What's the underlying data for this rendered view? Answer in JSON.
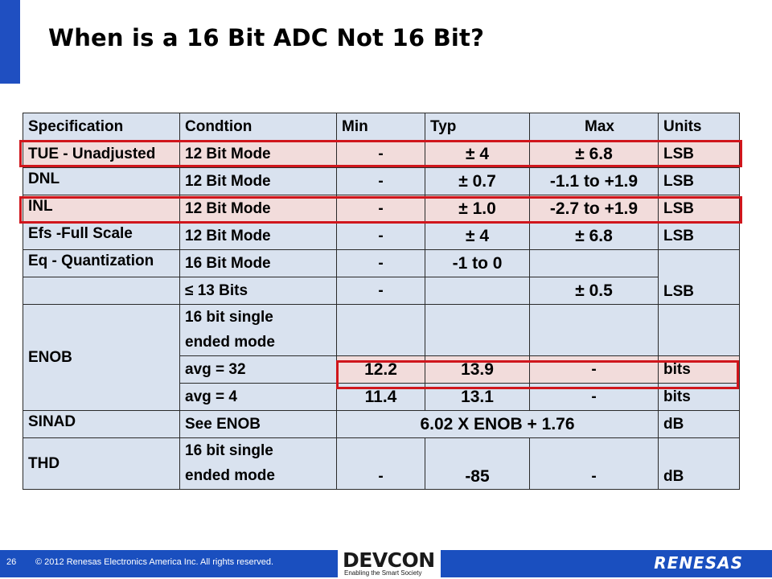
{
  "title": "When is a 16 Bit ADC Not 16 Bit?",
  "table": {
    "headers": [
      "Specification",
      "Condtion",
      "Min",
      "Typ",
      "Max",
      "Units"
    ],
    "rows": {
      "tue": [
        "TUE - Unadjusted",
        "12 Bit Mode",
        "-",
        "± 4",
        "± 6.8",
        "LSB"
      ],
      "dnl": [
        "DNL",
        "12 Bit Mode",
        "-",
        "± 0.7",
        "-1.1 to +1.9",
        "LSB"
      ],
      "inl": [
        "INL",
        "12 Bit Mode",
        "-",
        "± 1.0",
        "-2.7 to +1.9",
        "LSB"
      ],
      "efs": [
        "Efs -Full Scale",
        "12 Bit Mode",
        "-",
        "± 4",
        "± 6.8",
        "LSB"
      ],
      "eq": [
        "Eq - Quantization",
        "16 Bit Mode",
        "-",
        "-1 to 0"
      ],
      "eq2": [
        "≤ 13 Bits",
        "-",
        "± 0.5",
        "LSB"
      ],
      "enob": {
        "spec": "ENOB",
        "cond1": "16 bit single",
        "cond2": "ended mode",
        "avg32": [
          "avg = 32",
          "12.2",
          "13.9",
          "-",
          "bits"
        ],
        "avg4": [
          "avg = 4",
          "11.4",
          "13.1",
          "-",
          "bits"
        ]
      },
      "sinad": [
        "SINAD",
        "See ENOB",
        "6.02 X ENOB + 1.76",
        "dB"
      ],
      "thd": {
        "spec": "THD",
        "cond1": "16 bit single",
        "cond2": "ended mode",
        "min": "-",
        "typ": "-85",
        "max": "-",
        "units": "dB"
      }
    }
  },
  "footer": {
    "page_number": "26",
    "copyright": "© 2012 Renesas Electronics America Inc. All rights reserved.",
    "devcon_logo": "DEVCON",
    "devcon_tagline": "Enabling the Smart Society",
    "renesas_logo": "RENESAS"
  },
  "colors": {
    "accent_blue": "#1f4fc1",
    "cell_blue": "#d9e2ef",
    "highlight_pink": "#f2dcdb",
    "highlight_border": "#d0161c"
  }
}
